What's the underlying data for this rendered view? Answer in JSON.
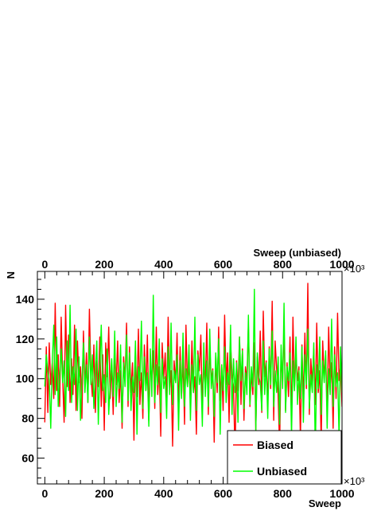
{
  "chart_data": {
    "type": "line",
    "title": "",
    "xlabel": "Sweep",
    "x2label": "Sweep (unbiased)",
    "ylabel": "N",
    "x_multiplier_label": "×10³",
    "xlim": [
      -25,
      1000
    ],
    "ylim": [
      47,
      154
    ],
    "x_ticks": [
      0,
      200,
      400,
      600,
      800,
      1000
    ],
    "x_tick_labels": [
      "0",
      "200",
      "400",
      "600",
      "800",
      "1000"
    ],
    "y_ticks": [
      60,
      80,
      100,
      120,
      140
    ],
    "y_tick_labels": [
      "60",
      "80",
      "100",
      "120",
      "140"
    ],
    "grid": false,
    "legend": {
      "position": "bottom-right"
    },
    "series": [
      {
        "name": "Biased",
        "color": "#ff0000",
        "x_start": 0,
        "x_step": 5,
        "values": [
          78,
          116,
          83,
          118,
          97,
          108,
          90,
          138,
          94,
          112,
          86,
          131,
          100,
          78,
          137,
          96,
          122,
          88,
          110,
          92,
          127,
          84,
          119,
          98,
          106,
          80,
          124,
          95,
          113,
          88,
          135,
          102,
          91,
          117,
          83,
          109,
          96,
          121,
          86,
          112,
          74,
          118,
          101,
          126,
          90,
          107,
          82,
          114,
          97,
          119,
          88,
          104,
          75,
          111,
          99,
          128,
          86,
          116,
          93,
          108,
          69,
          113,
          91,
          125,
          87,
          103,
          80,
          117,
          94,
          122,
          79,
          109,
          98,
          114,
          85,
          126,
          92,
          106,
          71,
          118,
          100,
          113,
          88,
          131,
          95,
          104,
          66,
          109,
          98,
          123,
          83,
          116,
          91,
          110,
          77,
          127,
          96,
          108,
          87,
          119,
          93,
          101,
          72,
          114,
          104,
          122,
          85,
          109,
          95,
          128,
          82,
          116,
          99,
          105,
          68,
          112,
          93,
          126,
          89,
          107,
          84,
          132,
          97,
          113,
          78,
          118,
          102,
          96,
          61,
          109,
          94,
          121,
          87,
          115,
          79,
          106,
          99,
          127,
          86,
          103,
          92,
          118,
          74,
          111,
          97,
          124,
          83,
          134,
          101,
          109,
          88,
          116,
          95,
          139,
          79,
          119,
          105,
          92,
          65,
          113,
          98,
          126,
          84,
          108,
          91,
          121,
          77,
          131,
          94,
          112,
          99,
          106,
          70,
          117,
          88,
          123,
          95,
          148,
          82,
          110,
          97,
          115,
          87,
          128,
          93,
          104,
          68,
          119,
          100,
          112,
          84,
          126,
          96,
          108,
          75,
          116,
          90,
          133,
          99,
          107,
          86,
          121,
          94,
          102,
          71,
          144,
          97,
          114,
          83,
          118,
          102,
          96,
          64,
          125,
          91,
          113,
          87,
          109,
          78,
          132,
          95,
          122,
          89,
          106,
          98,
          117,
          73,
          111,
          93,
          127,
          85,
          104,
          99,
          119,
          80,
          113,
          96,
          108,
          70,
          123,
          88,
          116,
          94,
          105,
          66,
          129,
          92,
          111,
          84,
          118,
          97,
          103,
          69,
          114,
          90,
          136,
          86,
          107,
          95,
          121,
          76,
          110,
          98,
          124,
          83,
          142,
          104,
          92,
          78,
          99,
          113,
          67,
          95,
          112,
          149
        ]
      },
      {
        "name": "Unbiased",
        "color": "#00ff00",
        "x_start": 0,
        "x_step": 5,
        "values": [
          96,
          112,
          104,
          99,
          75,
          108,
          127,
          92,
          121,
          86,
          101,
          115,
          98,
          109,
          81,
          119,
          94,
          137,
          88,
          106,
          97,
          125,
          84,
          111,
          79,
          99,
          118,
          93,
          107,
          88,
          121,
          97,
          112,
          85,
          104,
          119,
          77,
          106,
          127,
          94,
          102,
          88,
          115,
          82,
          97,
          110,
          91,
          124,
          86,
          103,
          95,
          117,
          78,
          108,
          96,
          122,
          89,
          113,
          84,
          101,
          93,
          119,
          72,
          106,
          99,
          129,
          85,
          111,
          94,
          103,
          76,
          115,
          91,
          142,
          88,
          107,
          97,
          120,
          83,
          110,
          95,
          101,
          80,
          116,
          92,
          128,
          87,
          104,
          98,
          112,
          74,
          109,
          90,
          123,
          86,
          105,
          96,
          117,
          79,
          107,
          93,
          131,
          84,
          112,
          97,
          102,
          76,
          118,
          91,
          109,
          86,
          125,
          95,
          104,
          81,
          113,
          98,
          120,
          72,
          107,
          94,
          116,
          88,
          103,
          97,
          127,
          82,
          110,
          93,
          108,
          78,
          121,
          99,
          114,
          85,
          103,
          92,
          132,
          87,
          106,
          96,
          145,
          74,
          113,
          101,
          98,
          84,
          119,
          92,
          108,
          80,
          115,
          97,
          124,
          86,
          104,
          93,
          111,
          77,
          117,
          95,
          138,
          83,
          106,
          99,
          113,
          71,
          109,
          94,
          121,
          87,
          104,
          90,
          116,
          78,
          112,
          97,
          125,
          85,
          102,
          93,
          118,
          62,
          107,
          95,
          121,
          82,
          109,
          98,
          114,
          75,
          105,
          92,
          130,
          86,
          112,
          96,
          103,
          70,
          116,
          93,
          109,
          84,
          124,
          97,
          105,
          67,
          113,
          91,
          119,
          86,
          107,
          95,
          127,
          78,
          110,
          98,
          115,
          83,
          101,
          92,
          123,
          64,
          108,
          96,
          113,
          85,
          104,
          93,
          120,
          77,
          111,
          97,
          128,
          84,
          106,
          90,
          117,
          73,
          109,
          99,
          121,
          86,
          103,
          94,
          111,
          68,
          115,
          97,
          124,
          83,
          108,
          92,
          100,
          64,
          119,
          95,
          115,
          87,
          106,
          72,
          131,
          98,
          110,
          84,
          104,
          91,
          122,
          79,
          108,
          96,
          118
        ]
      }
    ]
  }
}
